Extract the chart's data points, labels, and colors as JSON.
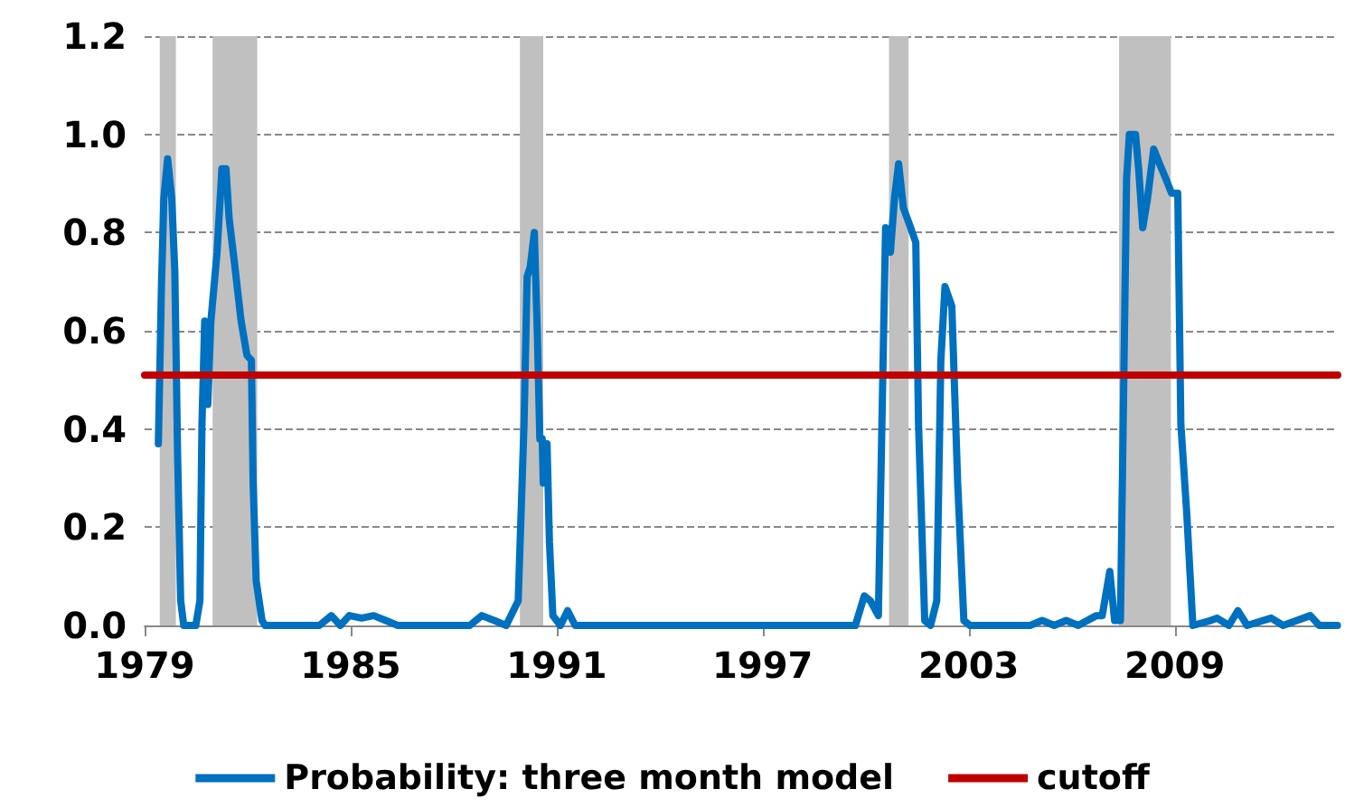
{
  "chart_data": {
    "type": "line",
    "xlim": [
      1979,
      2013.75
    ],
    "xticks": [
      1979,
      1985,
      1991,
      1997,
      2003,
      2009
    ],
    "ylim": [
      0,
      1.2
    ],
    "yticks": [
      {
        "value": 0,
        "label": "0.0"
      },
      {
        "value": 0.2,
        "label": "0.2"
      },
      {
        "value": 0.4,
        "label": "0.4"
      },
      {
        "value": 0.6,
        "label": "0.6"
      },
      {
        "value": 0.8,
        "label": "0.8"
      },
      {
        "value": 1.0,
        "label": "1.0"
      },
      {
        "value": 1.2,
        "label": "1.2"
      }
    ],
    "grid": "y",
    "legend": "bottom",
    "marker": "none",
    "line_style": "solid",
    "bands": [
      {
        "axis": "x",
        "from": 1979.44,
        "to": 1979.91,
        "color": "#c0c0c0"
      },
      {
        "axis": "x",
        "from": 1980.98,
        "to": 1982.28,
        "color": "#c0c0c0"
      },
      {
        "axis": "x",
        "from": 1989.93,
        "to": 1990.61,
        "color": "#c0c0c0"
      },
      {
        "axis": "x",
        "from": 2000.68,
        "to": 2001.25,
        "color": "#c0c0c0"
      },
      {
        "axis": "x",
        "from": 2007.38,
        "to": 2008.89,
        "color": "#c0c0c0"
      }
    ],
    "series": [
      {
        "name": "Probability: three month model",
        "color": "#0070c0",
        "x": [
          1979.4,
          1979.49,
          1979.56,
          1979.67,
          1979.79,
          1979.88,
          1979.96,
          1980.05,
          1980.14,
          1980.49,
          1980.61,
          1980.67,
          1980.75,
          1980.84,
          1980.93,
          1981.02,
          1981.11,
          1981.25,
          1981.37,
          1981.46,
          1981.63,
          1981.81,
          1981.98,
          1982.11,
          1982.16,
          1982.25,
          1982.42,
          1982.51,
          1984.09,
          1984.44,
          1984.7,
          1984.96,
          1985.32,
          1985.67,
          1986.02,
          1986.37,
          1988.47,
          1988.82,
          1989.18,
          1989.53,
          1989.88,
          1990.05,
          1990.14,
          1990.23,
          1990.35,
          1990.44,
          1990.51,
          1990.58,
          1990.61,
          1990.72,
          1990.79,
          1990.89,
          1991.11,
          1991.32,
          1991.54,
          1999.7,
          1999.96,
          2000.14,
          2000.37,
          2000.58,
          2000.72,
          2000.84,
          2000.96,
          2001.1,
          2001.31,
          2001.46,
          2001.54,
          2001.72,
          2001.89,
          2002.07,
          2002.19,
          2002.31,
          2002.51,
          2002.68,
          2002.86,
          2003.04,
          2004.79,
          2005.14,
          2005.49,
          2005.84,
          2006.19,
          2006.72,
          2006.89,
          2007.11,
          2007.25,
          2007.42,
          2007.6,
          2007.68,
          2007.86,
          2007.95,
          2008.07,
          2008.21,
          2008.39,
          2008.56,
          2008.74,
          2008.91,
          2009.09,
          2009.18,
          2009.35,
          2009.53,
          2010.05,
          2010.23,
          2010.58,
          2010.84,
          2011.11,
          2011.81,
          2012.16,
          2012.95,
          2013.21,
          2013.74
        ],
        "values": [
          0.37,
          0.69,
          0.87,
          0.95,
          0.87,
          0.72,
          0.35,
          0.05,
          0,
          0,
          0.05,
          0.41,
          0.62,
          0.45,
          0.62,
          0.69,
          0.76,
          0.93,
          0.93,
          0.83,
          0.73,
          0.62,
          0.55,
          0.54,
          0.29,
          0.09,
          0.01,
          0,
          0,
          0.02,
          0,
          0.02,
          0.015,
          0.02,
          0.01,
          0,
          0,
          0.02,
          0.01,
          0,
          0.05,
          0.41,
          0.71,
          0.73,
          0.8,
          0.59,
          0.38,
          0.38,
          0.29,
          0.37,
          0.17,
          0.02,
          0,
          0.03,
          0,
          0,
          0.06,
          0.05,
          0.02,
          0.81,
          0.76,
          0.87,
          0.94,
          0.85,
          0.81,
          0.78,
          0.41,
          0.01,
          0,
          0.05,
          0.54,
          0.69,
          0.65,
          0.29,
          0.01,
          0,
          0,
          0.01,
          0,
          0.01,
          0,
          0.02,
          0.02,
          0.11,
          0.01,
          0.01,
          0.91,
          1.0,
          1.0,
          0.93,
          0.81,
          0.87,
          0.97,
          0.94,
          0.91,
          0.88,
          0.88,
          0.41,
          0.23,
          0,
          0.01,
          0.015,
          0,
          0.03,
          0,
          0.015,
          0,
          0.02,
          0,
          0
        ]
      },
      {
        "name": "cutoff",
        "color": "#c00000",
        "x": [
          1979,
          2013.75
        ],
        "values": [
          0.51,
          0.51
        ]
      }
    ]
  }
}
